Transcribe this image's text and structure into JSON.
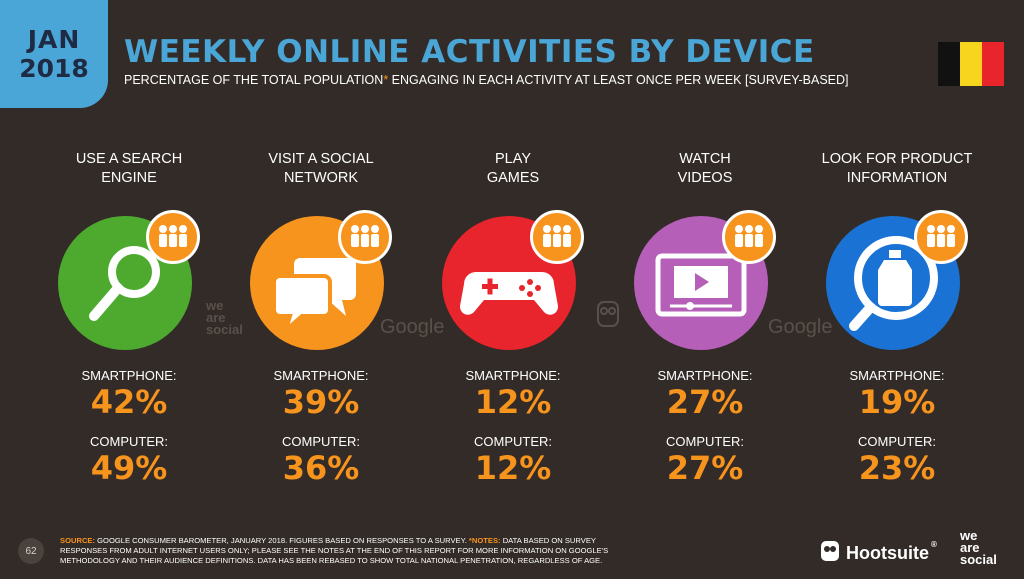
{
  "badge": {
    "month": "JAN",
    "year": "2018"
  },
  "header": {
    "title": "WEEKLY ONLINE ACTIVITIES BY DEVICE",
    "subtitle_part1": "PERCENTAGE OF THE TOTAL POPULATION",
    "subtitle_star": "*",
    "subtitle_part2": " ENGAGING IN EACH ACTIVITY AT LEAST ONCE PER WEEK [SURVEY-BASED]"
  },
  "flag": {
    "colors": [
      "#111111",
      "#f7d51e",
      "#e8242c"
    ]
  },
  "metric_labels": {
    "smartphone": "SMARTPHONE:",
    "computer": "COMPUTER:"
  },
  "activities": [
    {
      "line1": "USE A SEARCH",
      "line2": "ENGINE",
      "icon": "search-magnifier-icon",
      "color": "#4daa2f",
      "smartphone": "42%",
      "computer": "49%"
    },
    {
      "line1": "VISIT A SOCIAL",
      "line2": "NETWORK",
      "icon": "chat-bubbles-icon",
      "color": "#f7941d",
      "smartphone": "39%",
      "computer": "36%"
    },
    {
      "line1": "PLAY",
      "line2": "GAMES",
      "icon": "gamepad-icon",
      "color": "#e8242c",
      "smartphone": "12%",
      "computer": "12%"
    },
    {
      "line1": "WATCH",
      "line2": "VIDEOS",
      "icon": "video-player-icon",
      "color": "#b55fb8",
      "smartphone": "27%",
      "computer": "27%"
    },
    {
      "line1": "LOOK FOR PRODUCT",
      "line2": "INFORMATION",
      "icon": "product-search-icon",
      "color": "#1a73d4",
      "smartphone": "19%",
      "computer": "23%"
    }
  ],
  "watermarks": {
    "we_are_social": [
      "we",
      "are",
      "social"
    ],
    "google": "Google"
  },
  "footer": {
    "page_number": "62",
    "source_key": "SOURCE:",
    "source_text": " GOOGLE CONSUMER BAROMETER, JANUARY 2018. FIGURES BASED ON RESPONSES TO A SURVEY. ",
    "notes_key": "*NOTES:",
    "notes_text": " DATA BASED ON SURVEY RESPONSES FROM ADULT INTERNET USERS ONLY; PLEASE SEE THE NOTES AT THE END OF THIS REPORT FOR MORE INFORMATION ON GOOGLE'S METHODOLOGY AND THEIR AUDIENCE DEFINITIONS. DATA HAS BEEN REBASED TO SHOW TOTAL NATIONAL PENETRATION, REGARDLESS OF AGE.",
    "hootsuite": "Hootsuite",
    "hootsuite_mark": "®",
    "was": [
      "we",
      "are",
      "social"
    ]
  }
}
